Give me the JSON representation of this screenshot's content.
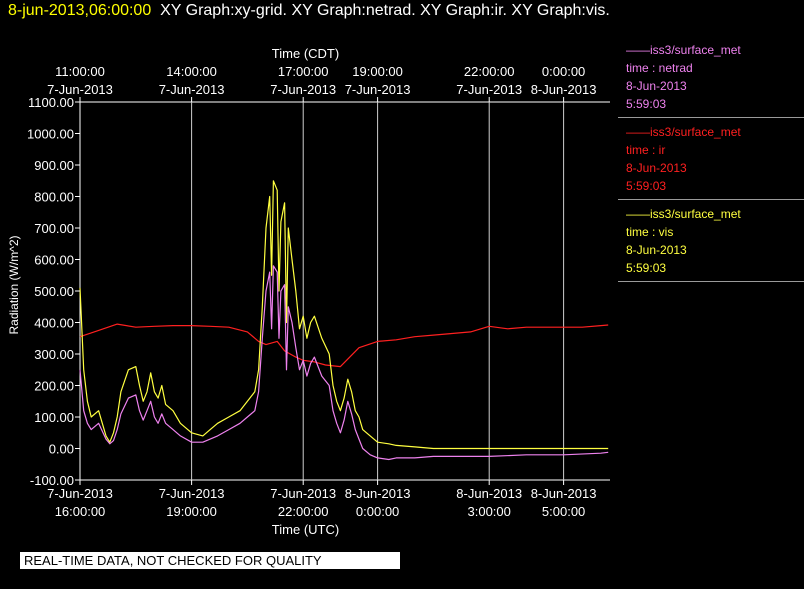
{
  "header": {
    "timestamp": "8-jun-2013,06:00:00",
    "titles": "XY Graph:xy-grid.  XY Graph:netrad.  XY Graph:ir.  XY Graph:vis."
  },
  "legend": [
    {
      "name": "iss3/surface_met",
      "line1": "time : netrad",
      "line2": "8-Jun-2013",
      "line3": "5:59:03",
      "color": "#ee82ee"
    },
    {
      "name": "iss3/surface_met",
      "line1": "time : ir",
      "line2": "8-Jun-2013",
      "line3": "5:59:03",
      "color": "#ff2020"
    },
    {
      "name": "iss3/surface_met",
      "line1": "time : vis",
      "line2": "8-Jun-2013",
      "line3": "5:59:03",
      "color": "#ffff40"
    }
  ],
  "disclaimer": "REAL-TIME DATA, NOT CHECKED FOR QUALITY",
  "chart_data": {
    "type": "line",
    "ylabel": "Radiation (W/m^2)",
    "ylim": [
      -100,
      1100
    ],
    "yticks": [
      -100,
      0,
      100,
      200,
      300,
      400,
      500,
      600,
      700,
      800,
      900,
      1000,
      1100
    ],
    "ytick_labels": [
      "-100.00",
      "0.00",
      "100.00",
      "200.00",
      "300.00",
      "400.00",
      "500.00",
      "600.00",
      "700.00",
      "800.00",
      "900.00",
      "1000.00",
      "1100.00"
    ],
    "xlim_utc_hours": [
      16,
      30.2
    ],
    "grid": true,
    "x_top_label": "Time (CDT)",
    "x_bottom_label": "Time (UTC)",
    "top_ticks": [
      {
        "hour": 16,
        "l1": "11:00:00",
        "l2": "7-Jun-2013"
      },
      {
        "hour": 19,
        "l1": "14:00:00",
        "l2": "7-Jun-2013"
      },
      {
        "hour": 22,
        "l1": "17:00:00",
        "l2": "7-Jun-2013"
      },
      {
        "hour": 24,
        "l1": "19:00:00",
        "l2": "7-Jun-2013"
      },
      {
        "hour": 27,
        "l1": "22:00:00",
        "l2": "7-Jun-2013"
      },
      {
        "hour": 29,
        "l1": "0:00:00",
        "l2": "8-Jun-2013"
      }
    ],
    "bottom_ticks": [
      {
        "hour": 16,
        "l1": "7-Jun-2013",
        "l2": "16:00:00"
      },
      {
        "hour": 19,
        "l1": "7-Jun-2013",
        "l2": "19:00:00"
      },
      {
        "hour": 22,
        "l1": "7-Jun-2013",
        "l2": "22:00:00"
      },
      {
        "hour": 24,
        "l1": "8-Jun-2013",
        "l2": "0:00:00"
      },
      {
        "hour": 27,
        "l1": "8-Jun-2013",
        "l2": "3:00:00"
      },
      {
        "hour": 29,
        "l1": "8-Jun-2013",
        "l2": "5:00:00"
      }
    ],
    "series": [
      {
        "key": "ir",
        "color": "#ff2020",
        "x": [
          16.0,
          16.5,
          17.0,
          17.5,
          18.0,
          18.5,
          19.0,
          19.5,
          20.0,
          20.5,
          20.8,
          21.0,
          21.3,
          21.5,
          21.8,
          22.0,
          22.3,
          22.6,
          23.0,
          23.5,
          24.0,
          24.5,
          25.0,
          25.5,
          26.0,
          26.5,
          27.0,
          27.5,
          28.0,
          28.5,
          29.0,
          29.5,
          30.0,
          30.2
        ],
        "y": [
          355,
          375,
          395,
          385,
          388,
          390,
          390,
          388,
          385,
          370,
          340,
          330,
          340,
          310,
          290,
          280,
          275,
          265,
          260,
          320,
          340,
          345,
          355,
          360,
          365,
          370,
          388,
          380,
          385,
          385,
          385,
          385,
          390,
          392
        ]
      },
      {
        "key": "vis",
        "color": "#ffff40",
        "x": [
          16.0,
          16.1,
          16.2,
          16.3,
          16.5,
          16.7,
          16.8,
          16.9,
          17.0,
          17.1,
          17.3,
          17.5,
          17.6,
          17.7,
          17.8,
          17.9,
          18.0,
          18.1,
          18.2,
          18.3,
          18.5,
          18.7,
          19.0,
          19.3,
          19.5,
          19.7,
          20.0,
          20.3,
          20.5,
          20.7,
          20.8,
          20.9,
          21.0,
          21.1,
          21.15,
          21.2,
          21.3,
          21.35,
          21.4,
          21.5,
          21.55,
          21.6,
          21.7,
          21.8,
          21.9,
          22.0,
          22.1,
          22.2,
          22.3,
          22.5,
          22.7,
          22.8,
          22.9,
          23.0,
          23.1,
          23.2,
          23.3,
          23.4,
          23.5,
          23.6,
          23.8,
          24.0,
          24.3,
          24.5,
          25.0,
          25.5,
          26.0,
          27.0,
          28.0,
          29.0,
          30.0,
          30.2
        ],
        "y": [
          510,
          250,
          150,
          100,
          120,
          40,
          20,
          50,
          100,
          180,
          250,
          260,
          200,
          150,
          180,
          240,
          180,
          160,
          200,
          140,
          120,
          80,
          50,
          40,
          60,
          80,
          100,
          120,
          150,
          180,
          250,
          450,
          700,
          800,
          550,
          850,
          820,
          500,
          720,
          780,
          400,
          700,
          600,
          500,
          380,
          420,
          350,
          400,
          420,
          350,
          300,
          200,
          150,
          120,
          160,
          220,
          180,
          120,
          100,
          60,
          40,
          20,
          15,
          10,
          5,
          0,
          0,
          0,
          0,
          0,
          0,
          0
        ]
      },
      {
        "key": "netrad",
        "color": "#ee82ee",
        "x": [
          16.0,
          16.1,
          16.2,
          16.3,
          16.5,
          16.7,
          16.8,
          16.9,
          17.0,
          17.1,
          17.3,
          17.5,
          17.6,
          17.7,
          17.8,
          17.9,
          18.0,
          18.1,
          18.2,
          18.3,
          18.5,
          18.7,
          19.0,
          19.3,
          19.5,
          19.7,
          20.0,
          20.3,
          20.5,
          20.7,
          20.8,
          20.9,
          21.0,
          21.1,
          21.15,
          21.2,
          21.3,
          21.35,
          21.4,
          21.5,
          21.55,
          21.6,
          21.7,
          21.8,
          21.9,
          22.0,
          22.1,
          22.2,
          22.3,
          22.5,
          22.7,
          22.8,
          22.9,
          23.0,
          23.1,
          23.2,
          23.3,
          23.4,
          23.5,
          23.6,
          23.8,
          24.0,
          24.3,
          24.5,
          25.0,
          25.5,
          26.0,
          27.0,
          28.0,
          29.0,
          30.0,
          30.2
        ],
        "y": [
          250,
          120,
          80,
          60,
          80,
          30,
          15,
          25,
          60,
          110,
          160,
          170,
          120,
          90,
          120,
          150,
          100,
          80,
          110,
          80,
          60,
          40,
          20,
          20,
          30,
          40,
          60,
          80,
          100,
          120,
          180,
          350,
          500,
          560,
          380,
          580,
          560,
          350,
          500,
          520,
          250,
          450,
          400,
          320,
          250,
          280,
          230,
          270,
          290,
          230,
          200,
          120,
          80,
          50,
          90,
          150,
          110,
          60,
          30,
          0,
          -20,
          -30,
          -35,
          -30,
          -30,
          -25,
          -25,
          -25,
          -20,
          -20,
          -15,
          -12
        ]
      }
    ]
  }
}
